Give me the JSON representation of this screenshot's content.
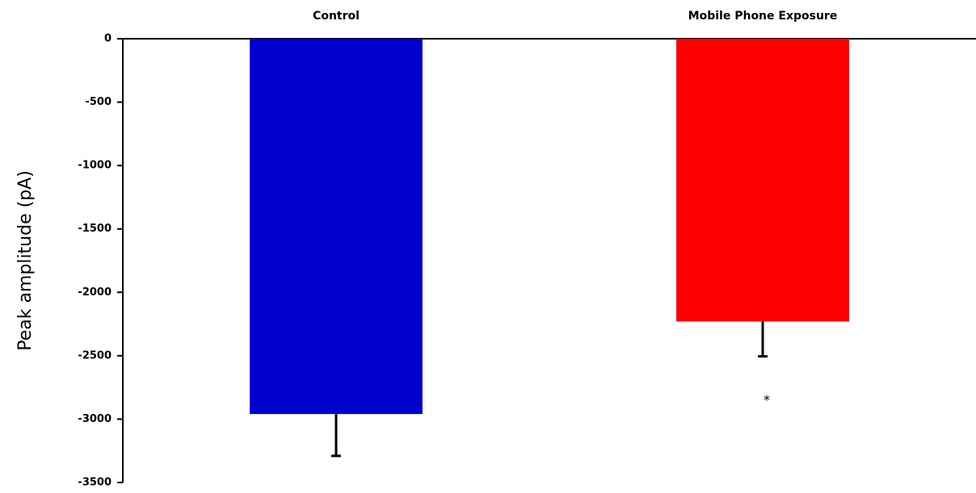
{
  "chart_data": {
    "type": "bar",
    "ylabel": "Peak amplitude (pA)",
    "categories": [
      "Control",
      "Mobile Phone Exposure"
    ],
    "values": [
      -2960,
      -2230
    ],
    "errors": [
      330,
      275
    ],
    "colors": [
      "#0000cc",
      "#ff0000"
    ],
    "annotation": "*",
    "ylim": [
      -3500,
      0
    ],
    "yticks": [
      0,
      -500,
      -1000,
      -1500,
      -2000,
      -2500,
      -3000,
      -3500
    ],
    "grid": false
  }
}
